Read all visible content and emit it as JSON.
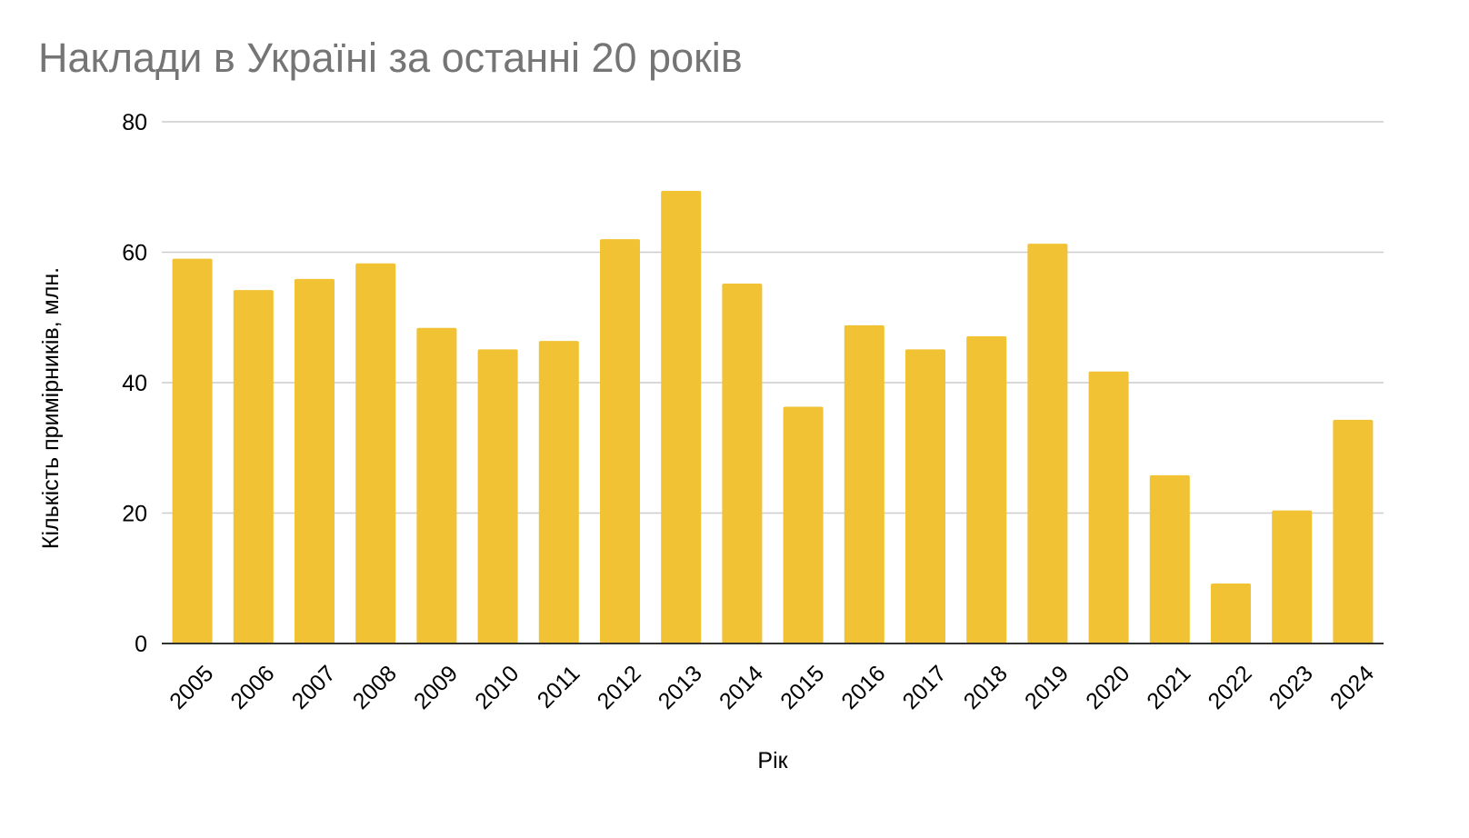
{
  "chart_data": {
    "type": "bar",
    "title": "Наклади в Україні за останні 20 років",
    "xlabel": "Рік",
    "ylabel": "Кількість примірників, млн.",
    "categories": [
      "2005",
      "2006",
      "2007",
      "2008",
      "2009",
      "2010",
      "2011",
      "2012",
      "2013",
      "2014",
      "2015",
      "2016",
      "2017",
      "2018",
      "2019",
      "2020",
      "2021",
      "2022",
      "2023",
      "2024"
    ],
    "series": [
      {
        "values": [
          59.0,
          54.2,
          55.9,
          58.3,
          48.4,
          45.1,
          46.4,
          62.0,
          69.4,
          55.2,
          36.3,
          48.8,
          45.1,
          47.1,
          61.3,
          41.7,
          25.8,
          9.2,
          20.4,
          34.3
        ]
      }
    ],
    "ylim": [
      0,
      80
    ],
    "yticks": [
      0,
      20,
      40,
      60,
      80
    ],
    "grid": true,
    "legend": "none",
    "colors": {
      "bar": "#f0c234",
      "grid": "#cccccc",
      "axis": "#333333",
      "title": "#757575"
    }
  }
}
